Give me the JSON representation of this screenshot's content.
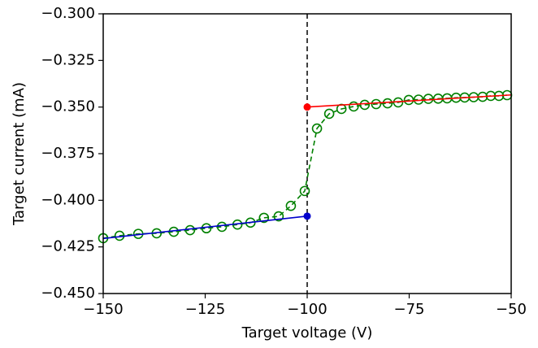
{
  "chart_data": {
    "type": "line",
    "x_label": "Target voltage (V)",
    "y_label": "Target current (mA)",
    "xlim": [
      -150,
      -50
    ],
    "ylim": [
      -0.45,
      -0.3
    ],
    "xticks": [
      {
        "value": -150,
        "label": "−150"
      },
      {
        "value": -125,
        "label": "−125"
      },
      {
        "value": -100,
        "label": "−100"
      },
      {
        "value": -75,
        "label": "−75"
      },
      {
        "value": -50,
        "label": "−50"
      }
    ],
    "yticks": [
      {
        "value": -0.45,
        "label": "−0.450"
      },
      {
        "value": -0.425,
        "label": "−0.425"
      },
      {
        "value": -0.4,
        "label": "−0.400"
      },
      {
        "value": -0.375,
        "label": "−0.375"
      },
      {
        "value": -0.35,
        "label": "−0.350"
      },
      {
        "value": -0.325,
        "label": "−0.325"
      },
      {
        "value": -0.3,
        "label": "−0.300"
      }
    ],
    "vline": -100,
    "series": [
      {
        "color": "#008000",
        "linestyle": "dashed",
        "marker": "open-circle",
        "x": [
          -150,
          -146,
          -141.4,
          -136.9,
          -132.7,
          -128.7,
          -124.7,
          -120.9,
          -117.1,
          -113.9,
          -110.6,
          -107,
          -104,
          -100.6,
          -97.6,
          -94.6,
          -91.6,
          -88.6,
          -85.9,
          -83.1,
          -80.3,
          -77.7,
          -75.1,
          -72.7,
          -70.3,
          -67.9,
          -65.7,
          -63.5,
          -61.4,
          -59.2,
          -57,
          -55,
          -53,
          -51
        ],
        "values": [
          -0.4203,
          -0.419,
          -0.418,
          -0.4177,
          -0.4169,
          -0.416,
          -0.415,
          -0.4142,
          -0.413,
          -0.412,
          -0.4094,
          -0.4086,
          -0.403,
          -0.395,
          -0.3615,
          -0.3536,
          -0.351,
          -0.3497,
          -0.3488,
          -0.3484,
          -0.348,
          -0.3475,
          -0.3462,
          -0.346,
          -0.3456,
          -0.3455,
          -0.3453,
          -0.345,
          -0.3449,
          -0.3447,
          -0.3445,
          -0.344,
          -0.344,
          -0.3436
        ]
      },
      {
        "color": "#0000cc",
        "linestyle": "solid",
        "marker": "dot-end",
        "x": [
          -150,
          -100
        ],
        "values": [
          -0.4205,
          -0.4085
        ]
      },
      {
        "color": "#ff0000",
        "linestyle": "solid",
        "marker": "dot-start",
        "x": [
          -100,
          -50
        ],
        "values": [
          -0.35,
          -0.3435
        ]
      }
    ]
  }
}
